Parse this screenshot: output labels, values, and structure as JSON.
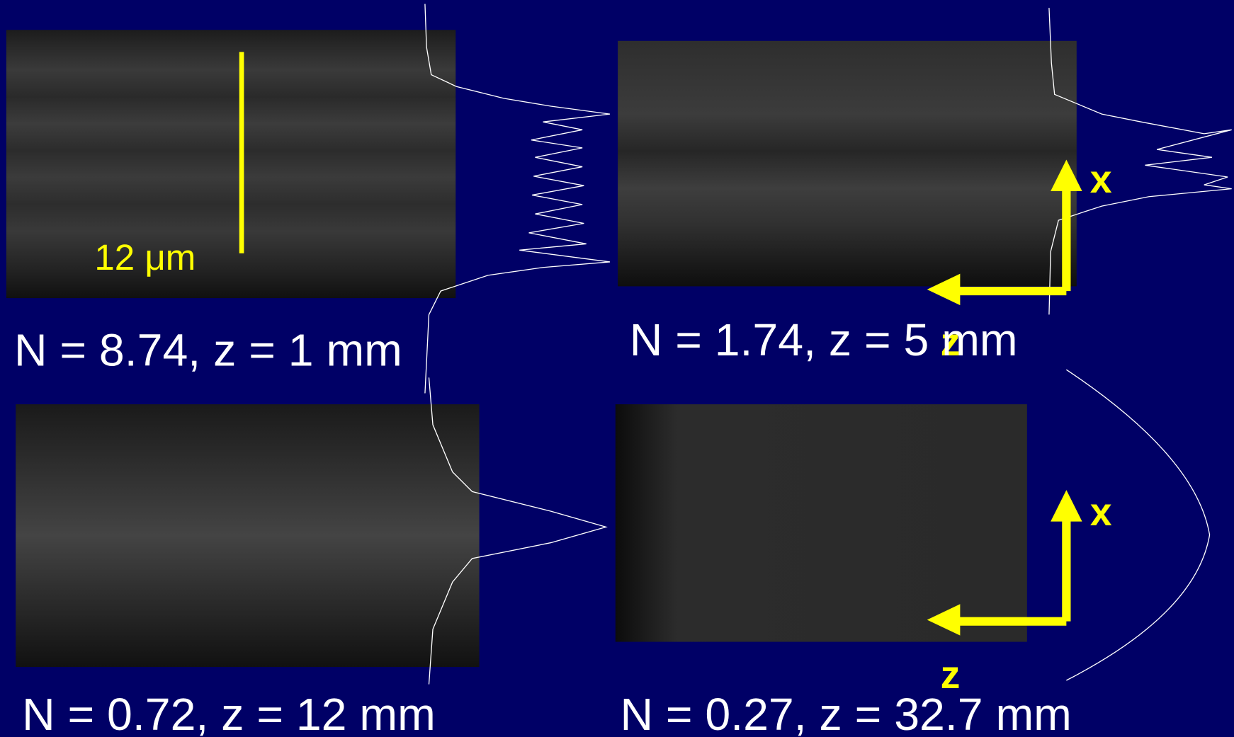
{
  "panels": [
    {
      "caption": "N = 8.74, z = 1 mm"
    },
    {
      "caption": "N = 1.74, z = 5 mm"
    },
    {
      "caption": "N = 0.72, z = 12 mm"
    },
    {
      "caption": "N = 0.27, z = 32.7 mm"
    }
  ],
  "scale_bar": {
    "label": "12 μm"
  },
  "axes": [
    {
      "x_label": "x",
      "z_label": "z"
    },
    {
      "x_label": "x",
      "z_label": "z"
    }
  ]
}
